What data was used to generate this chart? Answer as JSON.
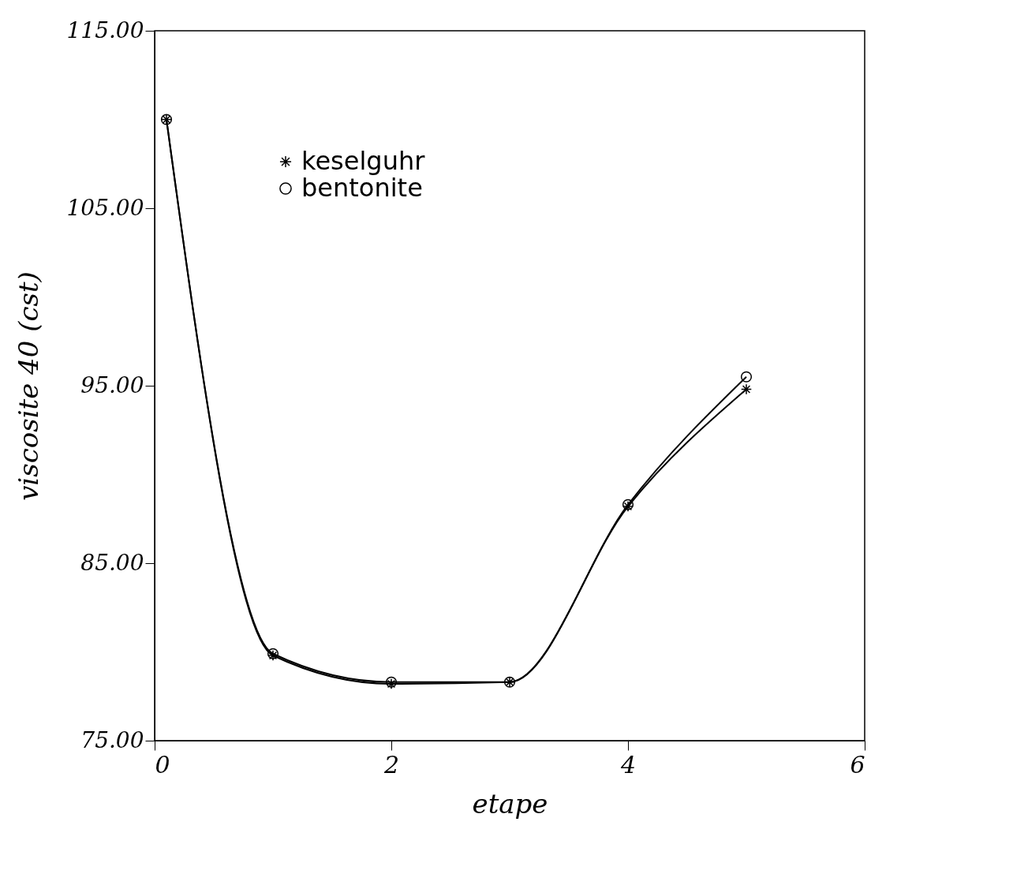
{
  "chart_data": {
    "type": "line",
    "xlabel": "etape",
    "ylabel": "viscosite 40 (cst)",
    "xlim": [
      0,
      6
    ],
    "ylim": [
      75,
      115
    ],
    "xticks": [
      0,
      2,
      4,
      6
    ],
    "yticks": [
      {
        "value": 75,
        "label": "75.00"
      },
      {
        "value": 85,
        "label": "85.00"
      },
      {
        "value": 95,
        "label": "95.00"
      },
      {
        "value": 105,
        "label": "105.00"
      },
      {
        "value": 115,
        "label": "115.00"
      }
    ],
    "grid": false,
    "legend": "top left",
    "line_style": "solid",
    "series": [
      {
        "name": "keselguhr",
        "color": "#000000",
        "marker": "cross",
        "x": [
          0.1,
          1,
          2,
          3,
          4,
          5
        ],
        "values": [
          110,
          79.8,
          78.2,
          78.3,
          88.2,
          94.8
        ]
      },
      {
        "name": "bentonite",
        "color": "#000000",
        "marker": "circle",
        "x": [
          0.1,
          1,
          2,
          3,
          4,
          5
        ],
        "values": [
          110,
          79.9,
          78.3,
          78.3,
          88.3,
          95.5
        ]
      }
    ]
  }
}
